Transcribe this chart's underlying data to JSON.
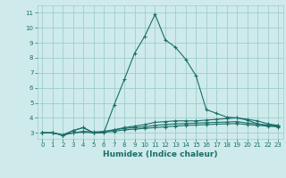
{
  "xlabel": "Humidex (Indice chaleur)",
  "background_color": "#ceeaea",
  "grid_color": "#a0cccc",
  "line_color": "#1a6e6a",
  "xlim": [
    -0.5,
    23.5
  ],
  "ylim": [
    2.6,
    11.5
  ],
  "yticks": [
    3,
    4,
    5,
    6,
    7,
    8,
    9,
    10,
    11
  ],
  "xticks": [
    0,
    1,
    2,
    3,
    4,
    5,
    6,
    7,
    8,
    9,
    10,
    11,
    12,
    13,
    14,
    15,
    16,
    17,
    18,
    19,
    20,
    21,
    22,
    23
  ],
  "curves": [
    [
      3.0,
      3.0,
      2.85,
      3.15,
      3.35,
      3.0,
      3.0,
      4.85,
      6.55,
      8.3,
      9.45,
      10.9,
      9.2,
      8.7,
      7.9,
      6.8,
      4.55,
      4.3,
      4.05,
      4.0,
      3.85,
      3.6,
      3.5,
      3.5
    ],
    [
      3.0,
      3.0,
      2.85,
      3.15,
      3.35,
      3.0,
      3.05,
      3.2,
      3.35,
      3.45,
      3.55,
      3.7,
      3.75,
      3.8,
      3.8,
      3.8,
      3.85,
      3.9,
      3.95,
      4.0,
      3.9,
      3.8,
      3.6,
      3.5
    ],
    [
      3.0,
      3.0,
      2.85,
      3.0,
      3.1,
      3.05,
      3.1,
      3.2,
      3.3,
      3.35,
      3.4,
      3.5,
      3.55,
      3.6,
      3.62,
      3.65,
      3.68,
      3.7,
      3.72,
      3.75,
      3.65,
      3.6,
      3.5,
      3.45
    ],
    [
      3.0,
      3.0,
      2.85,
      3.0,
      3.05,
      3.0,
      3.05,
      3.1,
      3.2,
      3.25,
      3.3,
      3.35,
      3.4,
      3.45,
      3.5,
      3.52,
      3.55,
      3.58,
      3.6,
      3.62,
      3.55,
      3.5,
      3.45,
      3.4
    ]
  ]
}
